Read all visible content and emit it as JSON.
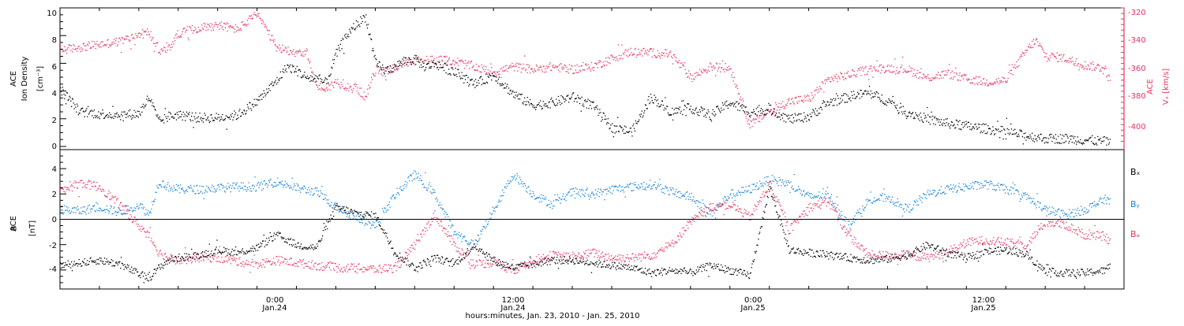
{
  "colors": {
    "axis": "#000000",
    "density": "#000000",
    "vx": "#e8355e",
    "bx": "#000000",
    "by": "#1a84db",
    "bz": "#e8355e"
  },
  "panel1": {
    "ylabel_line1": "ACE",
    "ylabel_line2": "Ion Density",
    "ylabel_unit": "[cm⁻³]",
    "left_ticks": [
      "0",
      "2",
      "4",
      "6",
      "8",
      "10"
    ],
    "right_ylabel_line1": "ACE",
    "right_ylabel_line2": "Vₓ [km/s]",
    "right_ticks": [
      "-320",
      "-340",
      "-360",
      "-380",
      "-400"
    ]
  },
  "panel2": {
    "ylabel_line1": "ACE",
    "ylabel_line2": "B",
    "ylabel_unit": "[nT]",
    "left_ticks": [
      "4",
      "2",
      "0",
      "-2",
      "-4"
    ],
    "legend": [
      "Bₓ",
      "Bᵧ",
      "Bₔ"
    ]
  },
  "xaxis": {
    "ticks": [
      {
        "time": "0:00",
        "date": "Jan.24"
      },
      {
        "time": "12:00",
        "date": "Jan.24"
      },
      {
        "time": "0:00",
        "date": "Jan.25"
      },
      {
        "time": "12:00",
        "date": "Jan.25"
      }
    ],
    "label": "hours:minutes, Jan. 23, 2010 - Jan. 25, 2010"
  },
  "chart_data": [
    {
      "type": "scatter",
      "xlabel": "hours:minutes, Jan. 23, 2010 - Jan. 25, 2010",
      "ylabel": "ACE Ion Density [cm⁻³]",
      "y2label": "ACE Vₓ [km/s]",
      "xlim_hours": [
        -11,
        43
      ],
      "ylim": [
        0,
        10
      ],
      "y2lim": [
        -416,
        -314
      ],
      "x_hours": [
        -11,
        -10,
        -9,
        -8,
        -7,
        -6.5,
        -6,
        -5.5,
        -5,
        -4.5,
        -4,
        -3,
        -2,
        -1,
        0,
        0.5,
        1,
        1.5,
        2,
        2.5,
        3,
        3.5,
        4,
        4.5,
        5,
        5.5,
        6,
        6.5,
        7,
        7.5,
        8,
        9,
        10,
        11,
        12,
        13,
        14,
        15,
        16,
        17,
        18,
        19,
        20,
        21,
        22,
        23,
        24,
        25,
        26,
        27,
        28,
        29,
        30,
        31,
        32,
        33,
        34,
        35,
        36,
        37,
        38,
        38.5,
        39,
        40,
        41,
        42,
        42.3
      ],
      "series": [
        {
          "name": "Ion Density",
          "axis": "left",
          "values": [
            4.2,
            2.5,
            2.4,
            2.3,
            2.4,
            3.6,
            1.8,
            2.2,
            2.3,
            2.2,
            2.1,
            2.1,
            2.3,
            3.3,
            4.8,
            5.8,
            5.5,
            5.0,
            4.9,
            4.6,
            6.7,
            8.0,
            8.8,
            9.4,
            6.0,
            5.5,
            5.8,
            6.2,
            6.3,
            5.8,
            6.0,
            5.4,
            4.5,
            5.2,
            3.8,
            3.0,
            3.2,
            3.6,
            3.0,
            1.4,
            1.1,
            3.6,
            2.5,
            2.8,
            2.3,
            3.2,
            2.5,
            2.7,
            2.0,
            2.2,
            3.2,
            3.6,
            3.9,
            3.3,
            2.5,
            2.0,
            1.7,
            1.5,
            1.3,
            1.1,
            0.8,
            0.7,
            0.6,
            0.6,
            0.5,
            0.4,
            0.4
          ]
        },
        {
          "name": "Vₓ",
          "axis": "right",
          "values": [
            -344,
            -342,
            -340,
            -338,
            -333,
            -331,
            -345,
            -343,
            -332,
            -330,
            -328,
            -326,
            -329,
            -318,
            -343,
            -344,
            -345,
            -346,
            -370,
            -372,
            -367,
            -370,
            -371,
            -378,
            -358,
            -360,
            -356,
            -354,
            -352,
            -351,
            -351,
            -352,
            -356,
            -360,
            -356,
            -358,
            -356,
            -358,
            -356,
            -350,
            -345,
            -346,
            -347,
            -364,
            -356,
            -357,
            -398,
            -388,
            -381,
            -379,
            -365,
            -362,
            -358,
            -357,
            -358,
            -364,
            -361,
            -365,
            -367,
            -366,
            -345,
            -337,
            -348,
            -350,
            -355,
            -357,
            -368
          ]
        }
      ]
    },
    {
      "type": "scatter",
      "ylabel": "ACE B [nT]",
      "xlim_hours": [
        -11,
        43
      ],
      "ylim": [
        -5.5,
        5.5
      ],
      "x_hours": [
        -11,
        -10,
        -9,
        -8,
        -7,
        -6.5,
        -6,
        -5.5,
        -5,
        -4,
        -3,
        -2,
        -1,
        0,
        1,
        2,
        3,
        4,
        5,
        6,
        7,
        8,
        9,
        10,
        11,
        12,
        13,
        14,
        15,
        16,
        17,
        18,
        19,
        20,
        21,
        22,
        23,
        24,
        25,
        26,
        27,
        28,
        29,
        30,
        31,
        32,
        33,
        34,
        35,
        36,
        37,
        38,
        39,
        40,
        41,
        42,
        42.3
      ],
      "series": [
        {
          "name": "Bₓ",
          "values": [
            -3.6,
            -3.4,
            -3.2,
            -3.5,
            -4.3,
            -4.6,
            -3.8,
            -3.2,
            -3.0,
            -2.8,
            -2.4,
            -2.6,
            -2.2,
            -1.2,
            -2.0,
            -2.2,
            1.0,
            0.5,
            0.3,
            -2.6,
            -3.8,
            -3.0,
            -3.5,
            -2.0,
            -3.2,
            -3.8,
            -3.5,
            -3.2,
            -3.2,
            -3.4,
            -3.6,
            -3.8,
            -4.2,
            -4.0,
            -4.2,
            -3.6,
            -4.0,
            -4.4,
            2.5,
            -2.4,
            -2.6,
            -2.8,
            -3.0,
            -3.2,
            -3.1,
            -2.8,
            -2.0,
            -2.6,
            -3.0,
            -2.5,
            -2.4,
            -2.7,
            -4.1,
            -4.2,
            -4.2,
            -4.0,
            -3.6
          ]
        },
        {
          "name": "Bᵧ",
          "values": [
            0.8,
            0.7,
            1.0,
            0.6,
            1.2,
            0.4,
            3.0,
            2.6,
            2.4,
            2.4,
            2.5,
            2.6,
            2.6,
            3.0,
            2.5,
            2.2,
            1.0,
            0.2,
            -0.5,
            2.0,
            3.6,
            2.0,
            -1.0,
            -2.0,
            0.8,
            3.6,
            2.0,
            1.2,
            2.2,
            2.0,
            2.4,
            2.6,
            2.8,
            2.2,
            1.8,
            0.5,
            2.0,
            2.4,
            3.2,
            2.8,
            1.8,
            2.0,
            -0.4,
            1.5,
            1.8,
            0.8,
            2.0,
            2.4,
            2.6,
            2.8,
            2.4,
            1.8,
            0.8,
            0.4,
            0.8,
            1.6,
            1.6
          ]
        },
        {
          "name": "Bₔ",
          "values": [
            2.2,
            2.9,
            2.6,
            1.2,
            -0.5,
            -1.2,
            -2.6,
            -3.0,
            -3.2,
            -3.0,
            -3.0,
            -3.3,
            -3.5,
            -3.2,
            -3.4,
            -3.6,
            -3.8,
            -3.8,
            -3.9,
            -3.8,
            -2.0,
            0.4,
            -2.0,
            -3.5,
            -3.4,
            -4.0,
            -3.2,
            -2.8,
            -3.0,
            -2.6,
            -3.0,
            -3.0,
            -2.8,
            -2.0,
            -0.2,
            1.0,
            1.2,
            0.2,
            2.8,
            -0.8,
            1.0,
            1.4,
            -1.2,
            -2.8,
            -2.8,
            -2.8,
            -3.0,
            -2.6,
            -1.8,
            -1.6,
            -1.8,
            -2.0,
            -0.2,
            -0.4,
            -1.2,
            -1.3,
            -1.8
          ]
        }
      ]
    }
  ]
}
